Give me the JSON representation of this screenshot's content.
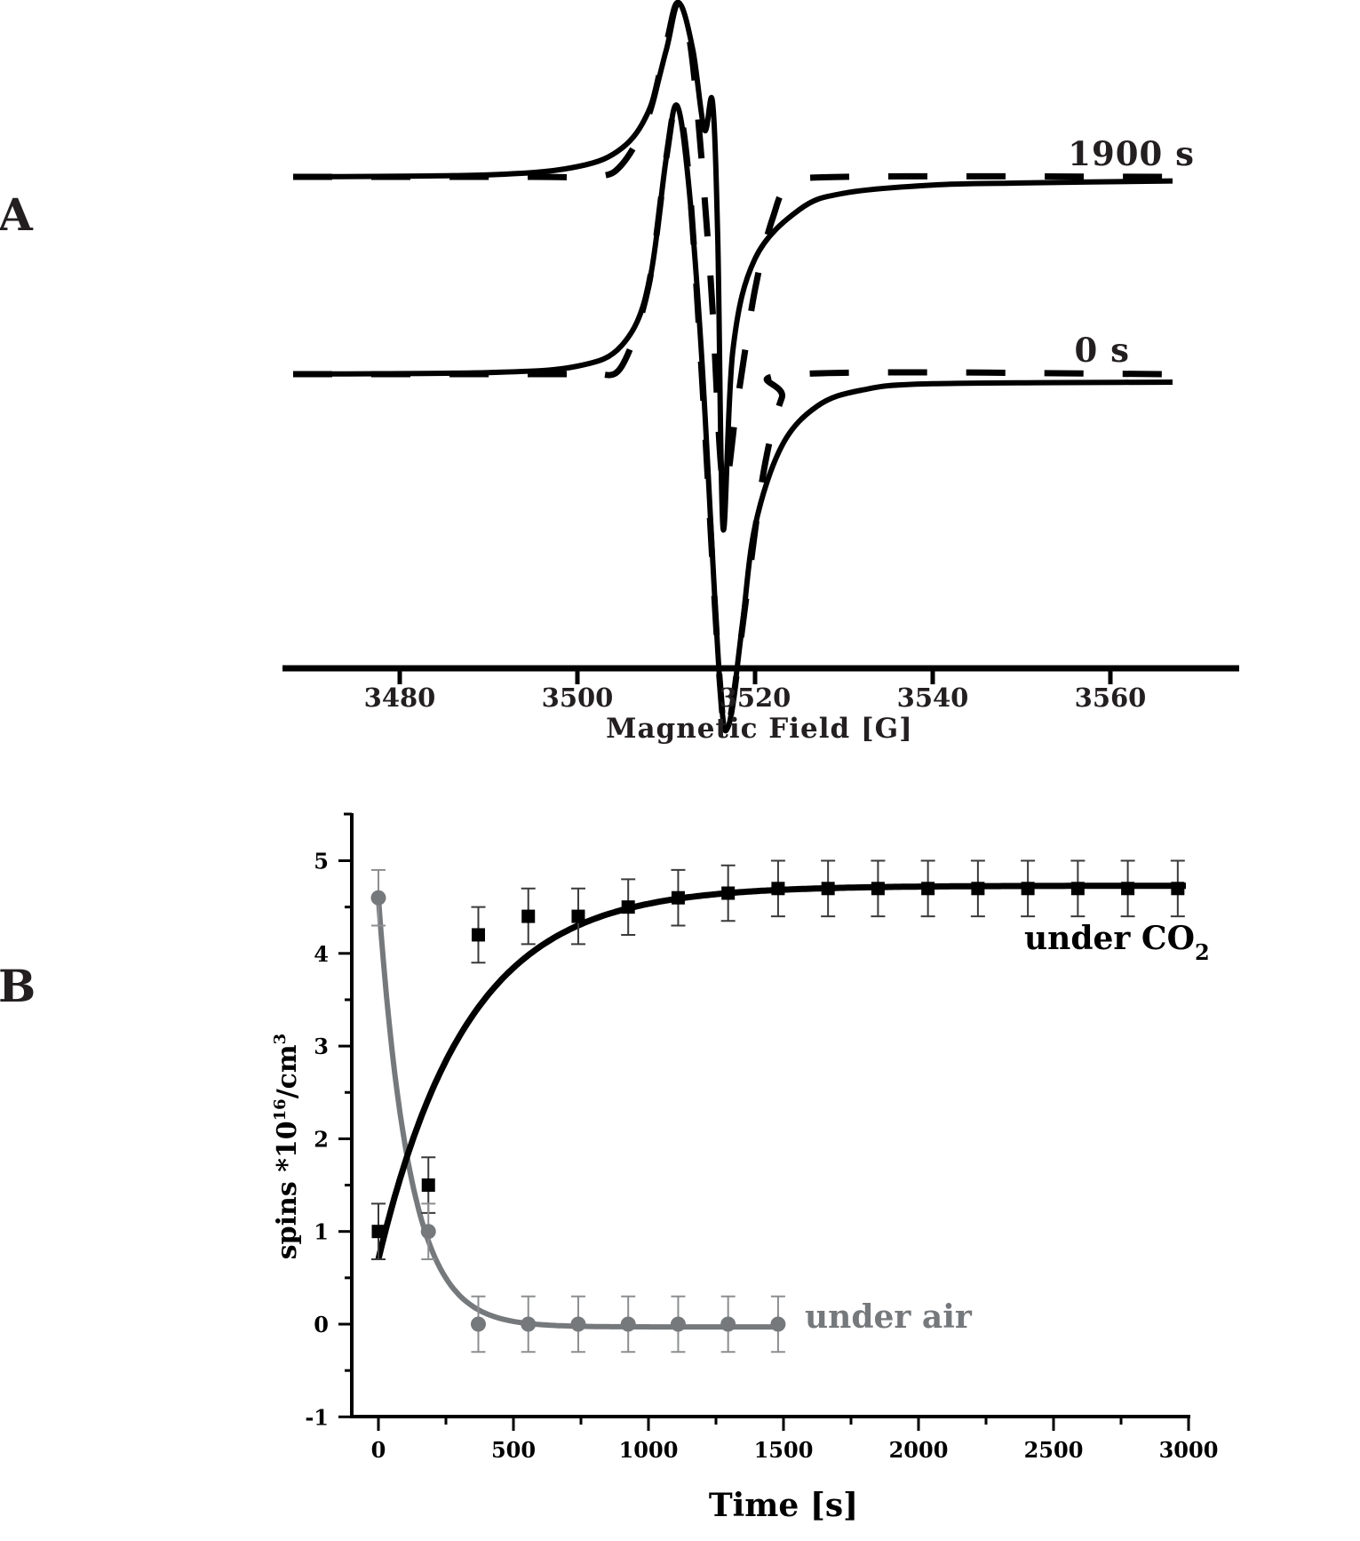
{
  "figure": {
    "panel_a_label": "A",
    "panel_b_label": "B"
  },
  "chart_data": [
    {
      "panel": "A",
      "type": "line",
      "title": "",
      "xlabel": "Magnetic Field [G]",
      "ylabel": "",
      "xlim": [
        3467,
        3574
      ],
      "xticks": [
        3480,
        3500,
        3520,
        3540,
        3560
      ],
      "xtick_labels": [
        "3480",
        "3500",
        "3520",
        "3540",
        "3560"
      ],
      "grid": false,
      "y_axis_visible": false,
      "annotations": [
        "1900 s",
        "0 s"
      ],
      "series": [
        {
          "name": "1900 s (experimental, solid)",
          "style": "solid",
          "offset_level": "upper",
          "description": "EPR derivative spectrum: baseline, positive peak near 3511.4 G, small dip then sharp spike near 3515.2 G, negative minimum near 3516.4 G, recovery to baseline slightly below initial level",
          "x": [
            3468,
            3490,
            3500,
            3505,
            3508,
            3510,
            3511.4,
            3513,
            3514.3,
            3515.2,
            3515.8,
            3516.4,
            3517.5,
            3520,
            3525,
            3530,
            3540,
            3550,
            3567
          ],
          "y": [
            0,
            0.01,
            0.05,
            0.14,
            0.32,
            0.62,
            0.85,
            0.62,
            0.23,
            0.37,
            -0.3,
            -1.72,
            -0.85,
            -0.4,
            -0.16,
            -0.08,
            -0.04,
            -0.03,
            -0.02
          ]
        },
        {
          "name": "1900 s (simulation, dashed)",
          "style": "dashed",
          "offset_level": "upper",
          "x": [
            3468,
            3495,
            3502,
            3505,
            3508,
            3510,
            3511.4,
            3513,
            3515,
            3516.4,
            3518,
            3520,
            3522,
            3524,
            3530,
            3567
          ],
          "y": [
            0,
            0,
            0,
            0.06,
            0.3,
            0.65,
            0.85,
            0.55,
            -0.5,
            -1.5,
            -1.1,
            -0.55,
            -0.2,
            -0.04,
            0,
            0
          ]
        },
        {
          "name": "0 s (experimental, solid)",
          "style": "solid",
          "offset_level": "lower",
          "x": [
            3468,
            3490,
            3500,
            3505,
            3508,
            3510,
            3511.2,
            3512.5,
            3514,
            3516,
            3517,
            3518.5,
            3520,
            3523,
            3527,
            3532,
            3540,
            3567
          ],
          "y": [
            0,
            0.01,
            0.05,
            0.18,
            0.55,
            1.35,
            1.68,
            1.2,
            0.1,
            -1.9,
            -2.2,
            -1.6,
            -0.95,
            -0.45,
            -0.2,
            -0.1,
            -0.06,
            -0.05
          ]
        },
        {
          "name": "0 s (simulation, dashed)",
          "style": "dashed",
          "offset_level": "lower",
          "x": [
            3468,
            3498,
            3502,
            3505,
            3508,
            3510,
            3511.2,
            3512.5,
            3514,
            3516,
            3517,
            3519,
            3521,
            3523,
            3525,
            3567
          ],
          "y": [
            0,
            0,
            0,
            0.05,
            0.55,
            1.35,
            1.68,
            1.25,
            0.0,
            -1.9,
            -2.2,
            -1.4,
            -0.6,
            -0.15,
            0,
            0
          ]
        }
      ]
    },
    {
      "panel": "B",
      "type": "scatter",
      "title": "",
      "xlabel": "Time [s]",
      "ylabel": "spins *10^16/cm^3",
      "xlim": [
        -100,
        3000
      ],
      "ylim": [
        -1,
        5.5
      ],
      "xticks": [
        0,
        500,
        1000,
        1500,
        2000,
        2500,
        3000
      ],
      "yticks": [
        -1,
        0,
        1,
        2,
        3,
        4,
        5
      ],
      "grid": false,
      "legend": "inline labels",
      "series": [
        {
          "name": "under CO2",
          "marker": "square",
          "color": "#000000",
          "x": [
            0,
            185,
            370,
            555,
            740,
            925,
            1110,
            1295,
            1480,
            1665,
            1850,
            2035,
            2220,
            2405,
            2590,
            2775,
            2960
          ],
          "y": [
            1.0,
            1.5,
            4.2,
            4.4,
            4.4,
            4.5,
            4.6,
            4.65,
            4.7,
            4.7,
            4.7,
            4.7,
            4.7,
            4.7,
            4.7,
            4.7,
            4.7
          ],
          "error": [
            0.3,
            0.3,
            0.3,
            0.3,
            0.3,
            0.3,
            0.3,
            0.3,
            0.3,
            0.3,
            0.3,
            0.3,
            0.3,
            0.3,
            0.3,
            0.3,
            0.3
          ],
          "fit": {
            "type": "exponential rise",
            "y0": 0.7,
            "plateau": 4.73,
            "tau": 330,
            "x_range": [
              0,
              2990
            ]
          }
        },
        {
          "name": "under air",
          "marker": "circle",
          "color": "#76797c",
          "x": [
            0,
            185,
            370,
            555,
            740,
            925,
            1110,
            1295,
            1480
          ],
          "y": [
            4.6,
            1.0,
            0.0,
            0.0,
            0.0,
            0.0,
            0.0,
            0.0,
            0.0
          ],
          "error": [
            0.3,
            0.3,
            0.3,
            0.3,
            0.3,
            0.3,
            0.3,
            0.3,
            0.3
          ],
          "fit": {
            "type": "exponential decay",
            "y0": 4.6,
            "plateau": -0.03,
            "tau": 115,
            "x_range": [
              0,
              1480
            ]
          }
        }
      ]
    }
  ],
  "labels": {
    "trace_1900": "1900 s",
    "trace_0": "0 s",
    "a_xlabel": "Magnetic Field [G]",
    "b_xlabel": "Time [s]",
    "b_ylabel_main": "spins *10",
    "b_ylabel_exp": "16",
    "b_ylabel_unit": "/cm",
    "b_ylabel_unit_exp": "3",
    "co2_label": "under CO",
    "co2_sub": "2",
    "air_label": "under air"
  },
  "colors": {
    "ink": "#000000",
    "text": "#231f20",
    "air_series": "#76797c",
    "air_errorbar": "#8c8e90",
    "co2_errorbar": "#3a3a3a"
  }
}
